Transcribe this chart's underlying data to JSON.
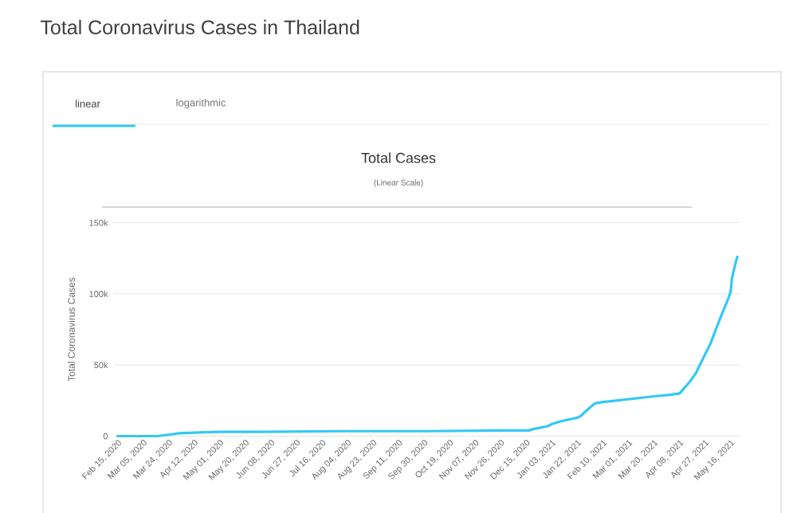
{
  "chart_data": {
    "type": "line",
    "title": "Total Cases",
    "subtitle": "(Linear Scale)",
    "ylabel": "Total Coronavirus Cases",
    "annotations": [
      "Total Coronavirus Cases in Thailand",
      "linear",
      "logarithmic"
    ],
    "x": [
      "2020-02-15",
      "2020-03-05",
      "2020-03-15",
      "2020-03-24",
      "2020-04-01",
      "2020-04-12",
      "2020-05-01",
      "2020-06-01",
      "2020-08-01",
      "2020-10-01",
      "2020-12-01",
      "2020-12-17",
      "2020-12-20",
      "2020-12-31",
      "2021-01-03",
      "2021-01-10",
      "2021-01-22",
      "2021-01-25",
      "2021-01-27",
      "2021-02-04",
      "2021-02-10",
      "2021-03-01",
      "2021-03-20",
      "2021-04-01",
      "2021-04-08",
      "2021-04-15",
      "2021-04-20",
      "2021-04-27",
      "2021-05-01",
      "2021-05-05",
      "2021-05-10",
      "2021-05-14",
      "2021-05-16",
      "2021-05-17",
      "2021-05-20",
      "2021-05-21"
    ],
    "series": [
      {
        "color": "#33c8f5",
        "values": [
          0,
          0,
          0,
          1000,
          2000,
          2500,
          3000,
          3000,
          3500,
          3500,
          4000,
          4000,
          5000,
          7000,
          8500,
          10500,
          13000,
          14500,
          16500,
          23000,
          24000,
          26000,
          28000,
          29000,
          30000,
          37500,
          44000,
          57500,
          65000,
          75000,
          87000,
          96000,
          101500,
          111000,
          123000,
          126000
        ]
      }
    ],
    "xlim": [
      "2020-02-12",
      "2021-05-23"
    ],
    "xticks": [
      {
        "value": "2020-02-15",
        "label": "Feb 15, 2020"
      },
      {
        "value": "2020-03-05",
        "label": "Mar 05, 2020"
      },
      {
        "value": "2020-03-24",
        "label": "Mar 24, 2020"
      },
      {
        "value": "2020-04-12",
        "label": "Apr 12, 2020"
      },
      {
        "value": "2020-05-01",
        "label": "May 01, 2020"
      },
      {
        "value": "2020-05-20",
        "label": "May 20, 2020"
      },
      {
        "value": "2020-06-08",
        "label": "Jun 08, 2020"
      },
      {
        "value": "2020-06-27",
        "label": "Jun 27, 2020"
      },
      {
        "value": "2020-07-16",
        "label": "Jul 16, 2020"
      },
      {
        "value": "2020-08-04",
        "label": "Aug 04, 2020"
      },
      {
        "value": "2020-08-23",
        "label": "Aug 23, 2020"
      },
      {
        "value": "2020-09-11",
        "label": "Sep 11, 2020"
      },
      {
        "value": "2020-09-30",
        "label": "Sep 30, 2020"
      },
      {
        "value": "2020-10-19",
        "label": "Oct 19, 2020"
      },
      {
        "value": "2020-11-07",
        "label": "Nov 07, 2020"
      },
      {
        "value": "2020-11-26",
        "label": "Nov 26, 2020"
      },
      {
        "value": "2020-12-15",
        "label": "Dec 15, 2020"
      },
      {
        "value": "2021-01-03",
        "label": "Jan 03, 2021"
      },
      {
        "value": "2021-01-22",
        "label": "Jan 22, 2021"
      },
      {
        "value": "2021-02-10",
        "label": "Feb 10, 2021"
      },
      {
        "value": "2021-03-01",
        "label": "Mar 01, 2021"
      },
      {
        "value": "2021-03-20",
        "label": "Mar 20, 2021"
      },
      {
        "value": "2021-04-08",
        "label": "Apr 08, 2021"
      },
      {
        "value": "2021-04-27",
        "label": "Apr 27, 2021"
      },
      {
        "value": "2021-05-16",
        "label": "May 16, 2021"
      }
    ],
    "ylim": [
      0,
      150000
    ],
    "yticks": [
      0,
      {
        "value": 50000,
        "label": "50k"
      },
      {
        "value": 100000,
        "label": "100k"
      },
      {
        "value": 150000,
        "label": "150k"
      }
    ],
    "grid": "y",
    "marker": "none",
    "line_style": "solid"
  }
}
